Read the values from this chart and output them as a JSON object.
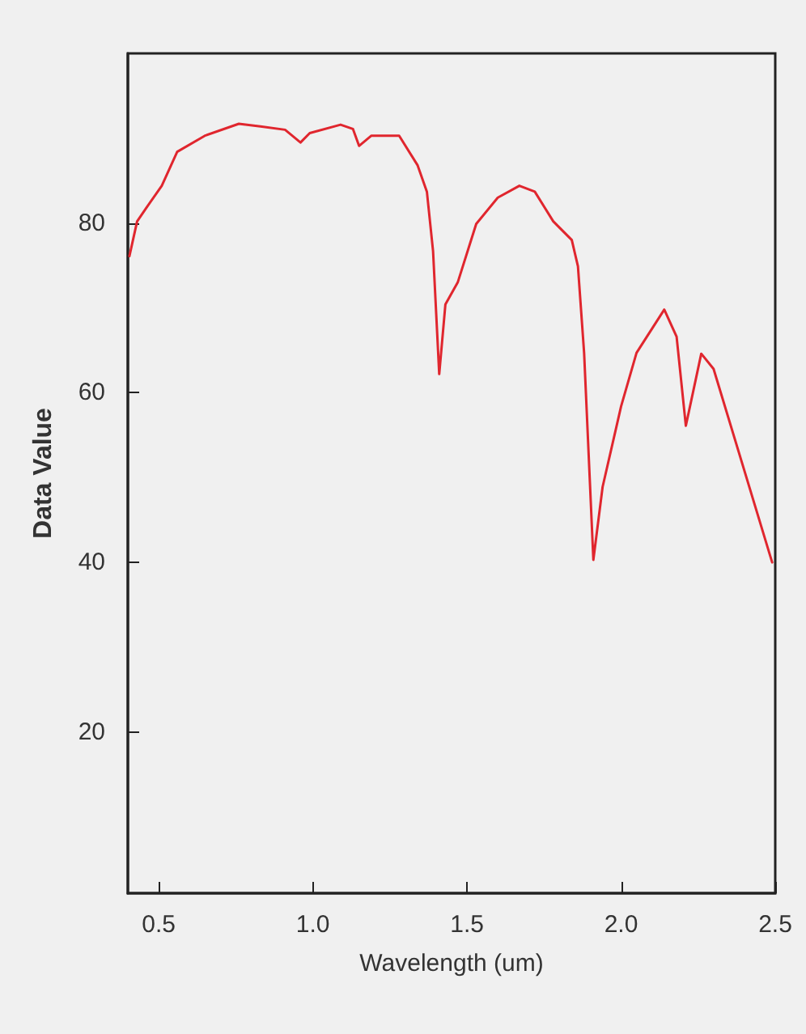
{
  "chart_data": {
    "type": "line",
    "xlabel": "Wavelength (um)",
    "ylabel": "Data Value",
    "x": [
      0.405,
      0.43,
      0.46,
      0.51,
      0.56,
      0.65,
      0.76,
      0.83,
      0.91,
      0.96,
      0.99,
      1.09,
      1.13,
      1.15,
      1.19,
      1.28,
      1.34,
      1.37,
      1.39,
      1.41,
      1.43,
      1.47,
      1.53,
      1.6,
      1.67,
      1.72,
      1.78,
      1.84,
      1.86,
      1.88,
      1.91,
      1.94,
      2.0,
      2.05,
      2.14,
      2.18,
      2.21,
      2.26,
      2.3,
      2.49
    ],
    "series": [
      {
        "color": "#e0262e",
        "values": [
          76.1,
          80.2,
          81.8,
          84.4,
          88.4,
          90.3,
          91.7,
          91.4,
          91.0,
          89.5,
          90.6,
          91.6,
          91.1,
          89.1,
          90.3,
          90.3,
          86.8,
          83.7,
          76.7,
          62.2,
          70.4,
          73.0,
          79.9,
          83.0,
          84.4,
          83.7,
          80.2,
          78.0,
          74.9,
          64.7,
          40.3,
          48.9,
          58.4,
          64.7,
          69.8,
          66.6,
          56.1,
          64.6,
          62.8,
          40.0
        ]
      }
    ],
    "xlim": [
      0.4,
      2.5
    ],
    "xticks": [
      0.5,
      {
        "value": 1,
        "label": "1.0"
      },
      1.5,
      {
        "value": 2,
        "label": "2.0"
      },
      2.5
    ],
    "ylim": [
      1,
      100
    ],
    "yticks": [
      20,
      40,
      60,
      80
    ],
    "grid": false,
    "marker": "none",
    "line_style": "solid"
  }
}
